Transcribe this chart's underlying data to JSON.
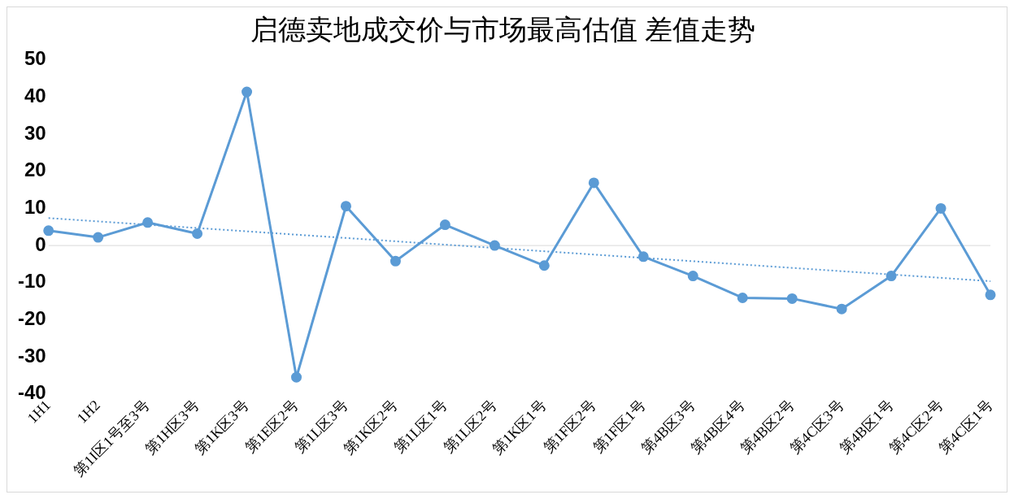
{
  "chart_data": {
    "type": "line",
    "title": "启德卖地成交价与市场最高估值 差值走势",
    "categories": [
      "1H1",
      "1H2",
      "第1I区1号至3号",
      "第1H区3号",
      "第1K区3号",
      "第1E区2号",
      "第1L区3号",
      "第1K区2号",
      "第1L区1号",
      "第1L区2号",
      "第1K区1号",
      "第1F区2号",
      "第1F区1号",
      "第4B区3号",
      "第4B区4号",
      "第4B区2号",
      "第4C区3号",
      "第4B区1号",
      "第4C区2号",
      "第4C区1号"
    ],
    "series": [
      {
        "color": "#5b9bd5",
        "marker": "circle",
        "line_style": "solid",
        "values": [
          4.0,
          2.2,
          6.2,
          3.2,
          41.4,
          -35.5,
          10.6,
          -4.2,
          5.6,
          0,
          -5.4,
          16.9,
          -3.0,
          -8.2,
          -14.1,
          -14.3,
          -17.1,
          -8.2,
          10.0,
          -13.3
        ]
      },
      {
        "color": "#5b9bd5",
        "marker": "none",
        "line_style": "dotted",
        "values": [
          7.4,
          null,
          null,
          null,
          null,
          null,
          null,
          null,
          null,
          null,
          null,
          null,
          null,
          null,
          null,
          null,
          null,
          null,
          null,
          -9.6
        ]
      }
    ],
    "ylim": [
      -40,
      50
    ],
    "yticks": [
      -40,
      -30,
      -20,
      -10,
      0,
      10,
      20,
      30,
      40,
      50
    ],
    "ref_lines": [
      {
        "axis": "y",
        "value": 0,
        "color": "#d9d9d9"
      }
    ],
    "grid": false,
    "legend": false
  }
}
